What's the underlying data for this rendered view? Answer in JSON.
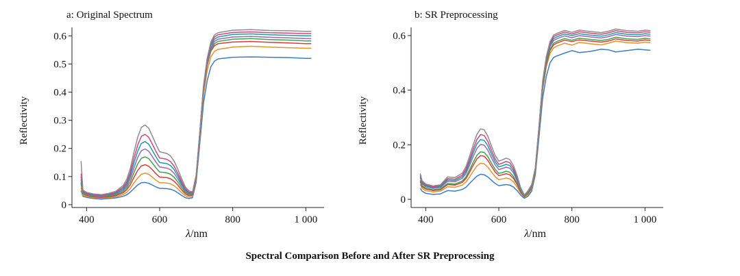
{
  "figure_caption": "Spectral Comparison Before and After SR Preprocessing",
  "chart_data": [
    {
      "type": "line",
      "title": "a: Original Spectrum",
      "xlabel_prefix": "λ",
      "xlabel_suffix": "/nm",
      "ylabel": "Reflectivity",
      "xlim": [
        360,
        1050
      ],
      "ylim": [
        -0.01,
        0.63
      ],
      "xticks": [
        400,
        600,
        800,
        1000
      ],
      "xtick_labels": [
        "400",
        "600",
        "800",
        "1 000"
      ],
      "yticks": [
        0,
        0.1,
        0.2,
        0.3,
        0.4,
        0.5,
        0.6
      ],
      "ytick_labels": [
        "0",
        "0.1",
        "0.2",
        "0.3",
        "0.4",
        "0.5",
        "0.6"
      ],
      "x": [
        385,
        390,
        400,
        420,
        440,
        460,
        480,
        500,
        510,
        520,
        530,
        540,
        550,
        560,
        570,
        580,
        590,
        600,
        610,
        620,
        630,
        640,
        650,
        660,
        670,
        680,
        690,
        700,
        710,
        720,
        730,
        740,
        750,
        760,
        800,
        850,
        900,
        950,
        1000,
        1015
      ],
      "series": [
        {
          "color": "#3a7dc4",
          "values": [
            0.05,
            0.03,
            0.026,
            0.022,
            0.02,
            0.022,
            0.024,
            0.03,
            0.035,
            0.045,
            0.058,
            0.07,
            0.078,
            0.079,
            0.076,
            0.07,
            0.063,
            0.058,
            0.058,
            0.057,
            0.055,
            0.05,
            0.042,
            0.033,
            0.025,
            0.022,
            0.025,
            0.08,
            0.22,
            0.36,
            0.44,
            0.49,
            0.51,
            0.518,
            0.524,
            0.525,
            0.524,
            0.523,
            0.52,
            0.52
          ]
        },
        {
          "color": "#e8932a",
          "values": [
            0.06,
            0.033,
            0.03,
            0.025,
            0.023,
            0.025,
            0.028,
            0.036,
            0.044,
            0.058,
            0.078,
            0.095,
            0.108,
            0.112,
            0.108,
            0.098,
            0.087,
            0.078,
            0.078,
            0.077,
            0.074,
            0.067,
            0.056,
            0.043,
            0.032,
            0.027,
            0.03,
            0.09,
            0.24,
            0.39,
            0.475,
            0.525,
            0.545,
            0.552,
            0.56,
            0.563,
            0.56,
            0.558,
            0.556,
            0.556
          ]
        },
        {
          "color": "#d93b3b",
          "values": [
            0.075,
            0.038,
            0.033,
            0.028,
            0.026,
            0.028,
            0.032,
            0.042,
            0.053,
            0.071,
            0.098,
            0.122,
            0.138,
            0.142,
            0.137,
            0.124,
            0.11,
            0.098,
            0.097,
            0.096,
            0.092,
            0.083,
            0.069,
            0.053,
            0.039,
            0.032,
            0.034,
            0.095,
            0.25,
            0.405,
            0.495,
            0.545,
            0.565,
            0.572,
            0.578,
            0.58,
            0.577,
            0.575,
            0.572,
            0.572
          ]
        },
        {
          "color": "#3fa34d",
          "values": [
            0.08,
            0.04,
            0.035,
            0.03,
            0.028,
            0.031,
            0.035,
            0.047,
            0.06,
            0.082,
            0.115,
            0.145,
            0.165,
            0.17,
            0.164,
            0.148,
            0.131,
            0.116,
            0.115,
            0.113,
            0.108,
            0.097,
            0.08,
            0.061,
            0.044,
            0.036,
            0.037,
            0.098,
            0.252,
            0.408,
            0.5,
            0.55,
            0.572,
            0.58,
            0.588,
            0.59,
            0.587,
            0.585,
            0.582,
            0.582
          ]
        },
        {
          "color": "#9467bd",
          "values": [
            0.09,
            0.043,
            0.037,
            0.032,
            0.03,
            0.033,
            0.038,
            0.052,
            0.067,
            0.094,
            0.132,
            0.168,
            0.192,
            0.198,
            0.19,
            0.171,
            0.151,
            0.134,
            0.132,
            0.13,
            0.124,
            0.111,
            0.091,
            0.069,
            0.049,
            0.039,
            0.039,
            0.1,
            0.255,
            0.412,
            0.505,
            0.557,
            0.58,
            0.588,
            0.596,
            0.598,
            0.595,
            0.593,
            0.59,
            0.59
          ]
        },
        {
          "color": "#1a9e9e",
          "values": [
            0.1,
            0.045,
            0.039,
            0.034,
            0.032,
            0.035,
            0.041,
            0.057,
            0.074,
            0.105,
            0.15,
            0.19,
            0.218,
            0.224,
            0.215,
            0.193,
            0.17,
            0.15,
            0.148,
            0.146,
            0.139,
            0.124,
            0.101,
            0.076,
            0.053,
            0.042,
            0.041,
            0.102,
            0.258,
            0.416,
            0.51,
            0.565,
            0.588,
            0.596,
            0.605,
            0.607,
            0.604,
            0.602,
            0.6,
            0.6
          ]
        },
        {
          "color": "#d6417f",
          "values": [
            0.11,
            0.048,
            0.041,
            0.036,
            0.034,
            0.037,
            0.044,
            0.062,
            0.081,
            0.116,
            0.167,
            0.212,
            0.243,
            0.25,
            0.24,
            0.215,
            0.189,
            0.166,
            0.164,
            0.161,
            0.153,
            0.136,
            0.111,
            0.083,
            0.058,
            0.045,
            0.043,
            0.104,
            0.26,
            0.42,
            0.515,
            0.572,
            0.596,
            0.604,
            0.612,
            0.614,
            0.611,
            0.61,
            0.608,
            0.608
          ]
        },
        {
          "color": "#8c8c8c",
          "values": [
            0.155,
            0.052,
            0.044,
            0.038,
            0.036,
            0.04,
            0.048,
            0.068,
            0.09,
            0.13,
            0.188,
            0.24,
            0.275,
            0.283,
            0.272,
            0.244,
            0.214,
            0.188,
            0.185,
            0.182,
            0.173,
            0.154,
            0.125,
            0.093,
            0.064,
            0.049,
            0.046,
            0.106,
            0.262,
            0.424,
            0.52,
            0.578,
            0.603,
            0.611,
            0.62,
            0.622,
            0.619,
            0.618,
            0.616,
            0.616
          ]
        }
      ]
    },
    {
      "type": "line",
      "title": "b: SR Preprocessing",
      "xlabel_prefix": "λ",
      "xlabel_suffix": "/nm",
      "ylabel": "Reflectivity",
      "xlim": [
        360,
        1050
      ],
      "ylim": [
        -0.03,
        0.63
      ],
      "xticks": [
        400,
        600,
        800,
        1000
      ],
      "xtick_labels": [
        "400",
        "600",
        "800",
        "1 000"
      ],
      "yticks": [
        0,
        0.2,
        0.4,
        0.6
      ],
      "ytick_labels": [
        "0",
        "0.2",
        "0.4",
        "0.6"
      ],
      "x": [
        385,
        390,
        400,
        420,
        440,
        460,
        480,
        500,
        510,
        520,
        530,
        540,
        550,
        560,
        570,
        580,
        590,
        600,
        610,
        620,
        630,
        640,
        650,
        660,
        670,
        680,
        690,
        700,
        710,
        720,
        730,
        740,
        750,
        760,
        780,
        800,
        820,
        850,
        880,
        900,
        920,
        950,
        980,
        1000,
        1015
      ],
      "series": [
        {
          "color": "#3a7dc4",
          "values": [
            0.04,
            0.03,
            0.022,
            0.018,
            0.02,
            0.032,
            0.03,
            0.036,
            0.044,
            0.058,
            0.072,
            0.085,
            0.092,
            0.09,
            0.082,
            0.07,
            0.058,
            0.05,
            0.052,
            0.054,
            0.052,
            0.045,
            0.032,
            0.015,
            0.004,
            0.012,
            0.03,
            0.09,
            0.23,
            0.37,
            0.45,
            0.5,
            0.52,
            0.526,
            0.536,
            0.545,
            0.538,
            0.542,
            0.55,
            0.548,
            0.54,
            0.545,
            0.55,
            0.548,
            0.546
          ]
        },
        {
          "color": "#e8932a",
          "values": [
            0.055,
            0.04,
            0.032,
            0.027,
            0.03,
            0.046,
            0.044,
            0.052,
            0.063,
            0.082,
            0.103,
            0.122,
            0.132,
            0.13,
            0.118,
            0.1,
            0.083,
            0.072,
            0.075,
            0.078,
            0.075,
            0.064,
            0.045,
            0.022,
            0.008,
            0.018,
            0.038,
            0.1,
            0.25,
            0.4,
            0.485,
            0.535,
            0.555,
            0.562,
            0.572,
            0.565,
            0.575,
            0.57,
            0.566,
            0.572,
            0.58,
            0.574,
            0.572,
            0.576,
            0.574
          ]
        },
        {
          "color": "#d93b3b",
          "values": [
            0.065,
            0.046,
            0.038,
            0.032,
            0.035,
            0.054,
            0.052,
            0.062,
            0.076,
            0.099,
            0.125,
            0.148,
            0.16,
            0.158,
            0.143,
            0.121,
            0.1,
            0.087,
            0.09,
            0.094,
            0.09,
            0.077,
            0.054,
            0.026,
            0.01,
            0.021,
            0.042,
            0.104,
            0.256,
            0.41,
            0.495,
            0.545,
            0.566,
            0.573,
            0.583,
            0.578,
            0.584,
            0.58,
            0.576,
            0.58,
            0.588,
            0.582,
            0.58,
            0.584,
            0.582
          ]
        },
        {
          "color": "#3fa34d",
          "values": [
            0.07,
            0.05,
            0.041,
            0.035,
            0.038,
            0.058,
            0.056,
            0.067,
            0.082,
            0.108,
            0.136,
            0.161,
            0.174,
            0.172,
            0.156,
            0.132,
            0.11,
            0.095,
            0.098,
            0.103,
            0.099,
            0.084,
            0.059,
            0.029,
            0.011,
            0.023,
            0.044,
            0.106,
            0.258,
            0.415,
            0.5,
            0.55,
            0.572,
            0.579,
            0.589,
            0.583,
            0.59,
            0.586,
            0.582,
            0.586,
            0.594,
            0.588,
            0.586,
            0.59,
            0.588
          ]
        },
        {
          "color": "#9467bd",
          "values": [
            0.08,
            0.056,
            0.046,
            0.04,
            0.043,
            0.066,
            0.064,
            0.077,
            0.094,
            0.124,
            0.157,
            0.186,
            0.201,
            0.198,
            0.18,
            0.152,
            0.126,
            0.109,
            0.113,
            0.118,
            0.114,
            0.097,
            0.068,
            0.033,
            0.013,
            0.026,
            0.048,
            0.11,
            0.262,
            0.42,
            0.508,
            0.56,
            0.582,
            0.589,
            0.599,
            0.592,
            0.6,
            0.595,
            0.591,
            0.596,
            0.604,
            0.598,
            0.596,
            0.6,
            0.598
          ]
        },
        {
          "color": "#1a9e9e",
          "values": [
            0.085,
            0.06,
            0.05,
            0.043,
            0.047,
            0.071,
            0.069,
            0.083,
            0.102,
            0.135,
            0.171,
            0.203,
            0.219,
            0.216,
            0.196,
            0.166,
            0.137,
            0.119,
            0.123,
            0.128,
            0.124,
            0.105,
            0.074,
            0.036,
            0.014,
            0.028,
            0.05,
            0.112,
            0.265,
            0.425,
            0.513,
            0.566,
            0.589,
            0.596,
            0.606,
            0.6,
            0.607,
            0.602,
            0.598,
            0.603,
            0.611,
            0.605,
            0.603,
            0.607,
            0.605
          ]
        },
        {
          "color": "#d6417f",
          "values": [
            0.09,
            0.064,
            0.053,
            0.046,
            0.05,
            0.076,
            0.074,
            0.089,
            0.11,
            0.145,
            0.184,
            0.219,
            0.237,
            0.234,
            0.212,
            0.179,
            0.148,
            0.128,
            0.133,
            0.139,
            0.134,
            0.114,
            0.08,
            0.039,
            0.015,
            0.03,
            0.052,
            0.114,
            0.268,
            0.43,
            0.518,
            0.572,
            0.596,
            0.603,
            0.613,
            0.606,
            0.614,
            0.609,
            0.605,
            0.61,
            0.618,
            0.612,
            0.61,
            0.614,
            0.612
          ]
        },
        {
          "color": "#8c8c8c",
          "values": [
            0.095,
            0.068,
            0.056,
            0.049,
            0.053,
            0.082,
            0.08,
            0.096,
            0.119,
            0.158,
            0.2,
            0.238,
            0.258,
            0.255,
            0.231,
            0.195,
            0.161,
            0.14,
            0.145,
            0.151,
            0.146,
            0.124,
            0.087,
            0.042,
            0.016,
            0.032,
            0.054,
            0.116,
            0.27,
            0.434,
            0.523,
            0.578,
            0.602,
            0.609,
            0.619,
            0.612,
            0.62,
            0.615,
            0.611,
            0.616,
            0.624,
            0.618,
            0.616,
            0.62,
            0.618
          ]
        }
      ]
    }
  ]
}
